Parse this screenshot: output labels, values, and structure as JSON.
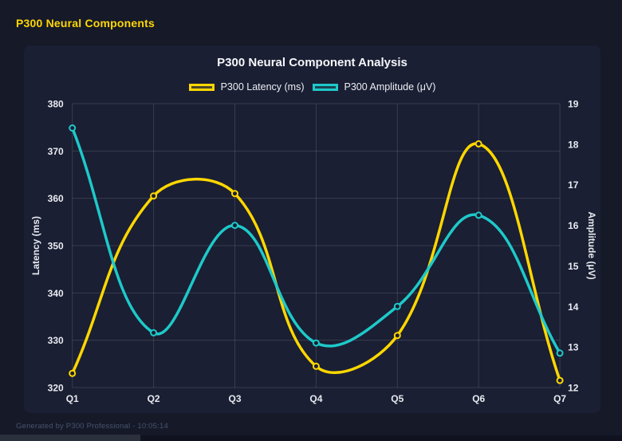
{
  "page": {
    "header_title": "P300 Neural Components",
    "footer_text": "Generated by P300 Professional - 10:05:14",
    "colors": {
      "page_bg": "#151928",
      "panel_bg": "#1a1f33",
      "accent_yellow": "#ffd700",
      "accent_teal": "#1ec9c9",
      "text_primary": "#f5f6fa",
      "text_tick": "#e8eaf1",
      "text_muted": "#49546e",
      "grid": "rgba(255,255,255,0.13)"
    }
  },
  "chart_data": {
    "type": "line",
    "title": "P300 Neural Component Analysis",
    "categories": [
      "Q1",
      "Q2",
      "Q3",
      "Q4",
      "Q5",
      "Q6",
      "Q7"
    ],
    "series": [
      {
        "name": "P300 Latency (ms)",
        "axis": "left",
        "color": "#ffd700",
        "fill": "rgba(255,215,0,0.22)",
        "values": [
          323,
          360.5,
          361,
          324.5,
          331,
          371.5,
          321.5
        ]
      },
      {
        "name": "P300 Amplitude (μV)",
        "axis": "right",
        "color": "#1ec9c9",
        "fill": "rgba(30,201,201,0.22)",
        "values": [
          18.4,
          13.35,
          16.0,
          13.1,
          14.0,
          16.25,
          12.85
        ]
      }
    ],
    "axes": {
      "left": {
        "label": "Latency (ms)",
        "min": 320,
        "max": 380,
        "ticks": [
          380,
          370,
          360,
          350,
          340,
          330,
          320
        ]
      },
      "right": {
        "label": "Amplitude (μV)",
        "min": 12,
        "max": 19,
        "ticks": [
          19,
          18,
          17,
          16,
          15,
          14,
          13,
          12
        ]
      }
    },
    "legend_position": "top",
    "grid": true,
    "line_tension": 0.4
  }
}
